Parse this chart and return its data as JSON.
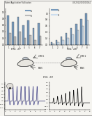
{
  "bg_color": "#f5f4f0",
  "header_text": "Patent Application Publication",
  "header_date": "Nov. 29, 2012",
  "header_right": "US 2012/0000000 A1",
  "fig17_label": "FIG. 17",
  "fig18_label": "FIG. 18",
  "fig19_label": "FIG. 19",
  "fig20a_label": "FIG. 20A",
  "fig20b_label": "FIG. 20B",
  "text_color": "#222222",
  "bar_color_dark": "#7799bb",
  "bar_color_mid": "#aabbcc",
  "bar_color_light": "#ccddee",
  "bar_color_gray": "#bbbbbb",
  "line_color_dark": "#111111",
  "line_color_mid": "#444488",
  "outline_color": "#555555",
  "fig17_vals_a": [
    0.9,
    0.7,
    0.85,
    0.6,
    0.75,
    0.5,
    0.65
  ],
  "fig17_vals_b": [
    0.35,
    0.25,
    0.4,
    0.2,
    0.3,
    0.15,
    0.28
  ],
  "fig18_vals_a": [
    0.08,
    0.15,
    0.25,
    0.38,
    0.52,
    0.67,
    0.82,
    1.0
  ],
  "fig18_vals_b": [
    0.04,
    0.08,
    0.14,
    0.22,
    0.33,
    0.46,
    0.6,
    0.78
  ],
  "waveform_peaks_a": [
    0.8,
    1.6,
    2.4,
    3.2,
    4.0,
    4.8,
    5.6,
    6.4
  ],
  "waveform_peaks_b": [
    0.8,
    1.6,
    2.4,
    3.2,
    4.0,
    4.8,
    5.6,
    6.4
  ]
}
